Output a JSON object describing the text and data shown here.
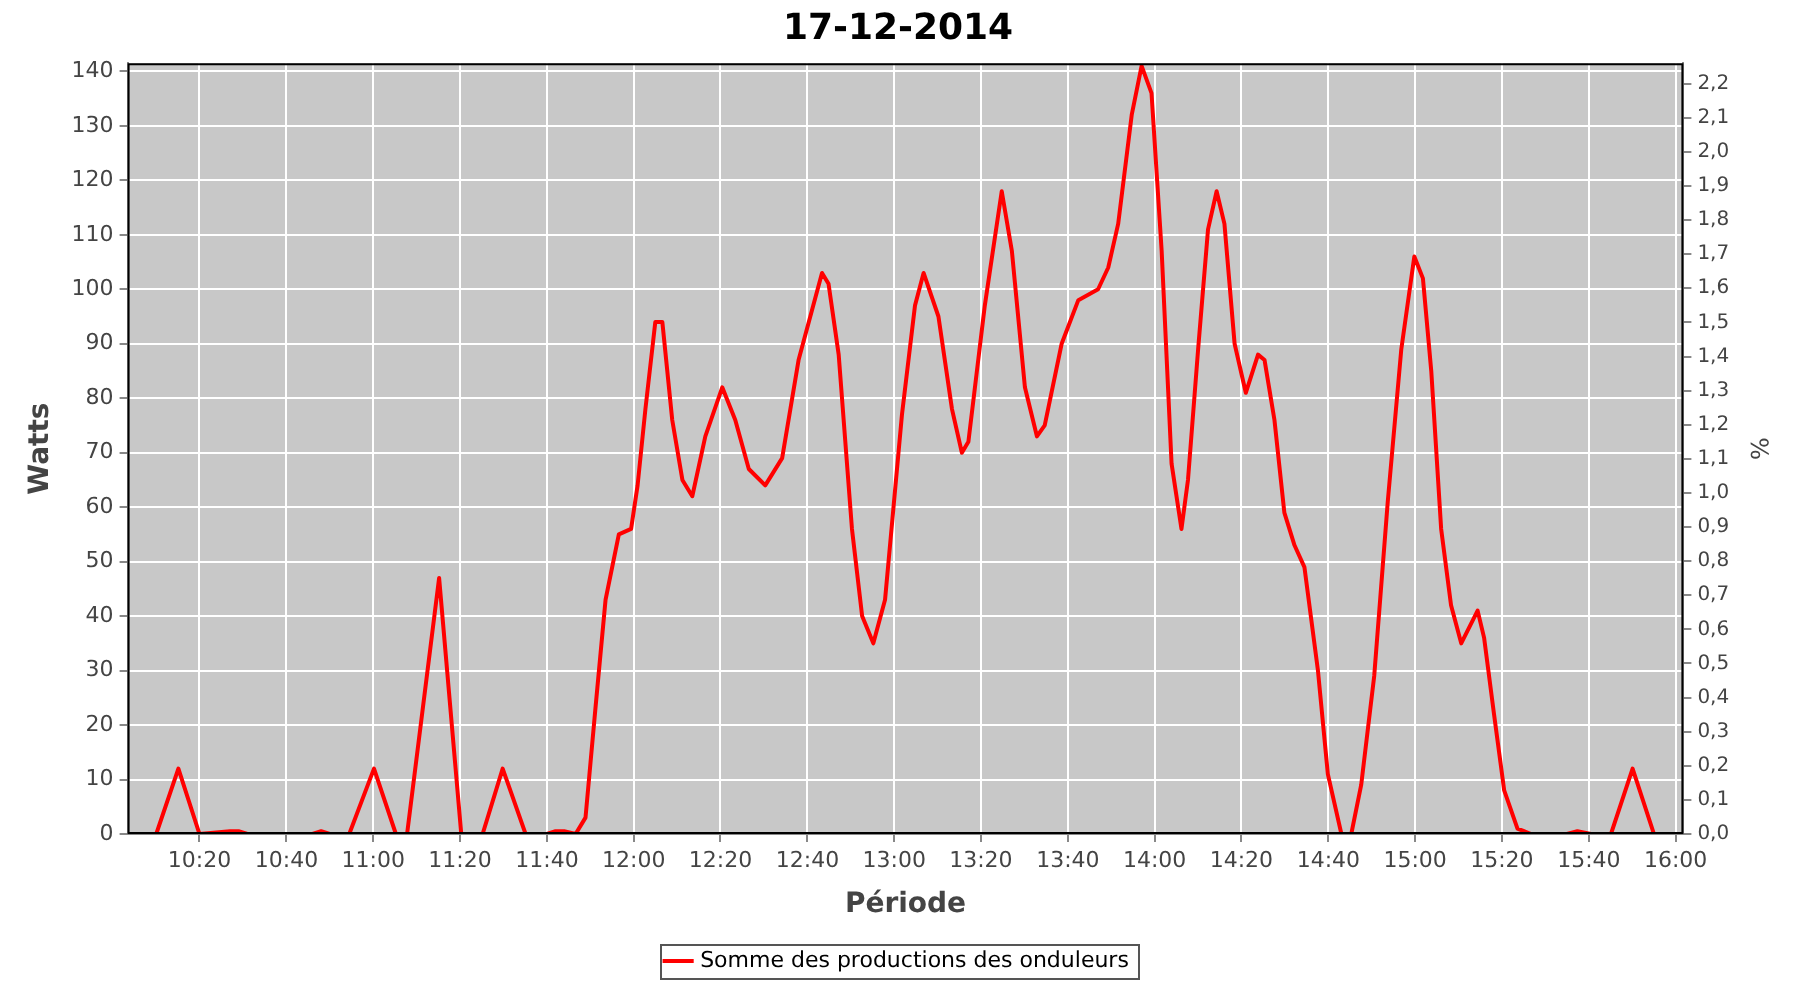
{
  "chart_data": {
    "type": "line",
    "title": "17-12-2014",
    "xlabel": "Période",
    "ylabel": "Watts",
    "y2label": "%",
    "series": [
      {
        "name": "Somme des productions des onduleurs",
        "color": "#ff0000",
        "x": [
          10.167,
          10.252,
          10.333,
          10.45,
          10.483,
          10.517,
          10.767,
          10.8,
          10.833,
          10.908,
          11.003,
          11.087,
          11.13,
          11.253,
          11.338,
          11.42,
          11.497,
          11.585,
          11.667,
          11.7,
          11.733,
          11.777,
          11.815,
          11.853,
          11.892,
          11.943,
          11.99,
          12.015,
          12.045,
          12.083,
          12.11,
          12.148,
          12.187,
          12.225,
          12.275,
          12.34,
          12.39,
          12.442,
          12.505,
          12.57,
          12.633,
          12.723,
          12.748,
          12.787,
          12.838,
          12.877,
          12.92,
          12.965,
          13.03,
          13.08,
          13.113,
          13.17,
          13.222,
          13.26,
          13.285,
          13.348,
          13.413,
          13.452,
          13.502,
          13.548,
          13.578,
          13.643,
          13.707,
          13.783,
          13.822,
          13.86,
          13.912,
          13.95,
          13.988,
          14.027,
          14.065,
          14.103,
          14.128,
          14.167,
          14.205,
          14.238,
          14.268,
          14.307,
          14.35,
          14.397,
          14.422,
          14.46,
          14.498,
          14.537,
          14.575,
          14.627,
          14.665,
          14.717,
          14.755,
          14.793,
          14.843,
          14.895,
          14.947,
          14.997,
          15.03,
          15.062,
          15.1,
          15.138,
          15.177,
          15.24,
          15.265,
          15.303,
          15.342,
          15.393,
          15.445,
          15.583,
          15.623,
          15.675,
          15.752,
          15.835,
          15.917
        ],
        "values": [
          0,
          12,
          0,
          0.5,
          0.5,
          0,
          0,
          0.5,
          0,
          0,
          12,
          0,
          0,
          47,
          0,
          0,
          12,
          0,
          0,
          0.5,
          0.5,
          0,
          3,
          23,
          43,
          55,
          56,
          64,
          78,
          94,
          94,
          76,
          65,
          62,
          73,
          82,
          76,
          67,
          64,
          69,
          87,
          103,
          101,
          88,
          56,
          40,
          35,
          43,
          77,
          97,
          103,
          95,
          78,
          70,
          72,
          97,
          118,
          107,
          82,
          73,
          75,
          90,
          98,
          100,
          104,
          112,
          132,
          141,
          136,
          107,
          68,
          56,
          65,
          89,
          111,
          118,
          112,
          90,
          81,
          88,
          87,
          76,
          59,
          53,
          49,
          30,
          11,
          0,
          0,
          9,
          29,
          61,
          89,
          106,
          102,
          85,
          56,
          42,
          35,
          41,
          36,
          22,
          8,
          1,
          0,
          0,
          0.5,
          0,
          0,
          12,
          0
        ]
      }
    ],
    "xlim": [
      10.057,
      16.03
    ],
    "xticks": [
      {
        "value": 10.333,
        "label": "10:20"
      },
      {
        "value": 10.667,
        "label": "10:40"
      },
      {
        "value": 11,
        "label": "11:00"
      },
      {
        "value": 11.333,
        "label": "11:20"
      },
      {
        "value": 11.667,
        "label": "11:40"
      },
      {
        "value": 12,
        "label": "12:00"
      },
      {
        "value": 12.333,
        "label": "12:20"
      },
      {
        "value": 12.667,
        "label": "12:40"
      },
      {
        "value": 13,
        "label": "13:00"
      },
      {
        "value": 13.333,
        "label": "13:20"
      },
      {
        "value": 13.667,
        "label": "13:40"
      },
      {
        "value": 14,
        "label": "14:00"
      },
      {
        "value": 14.333,
        "label": "14:20"
      },
      {
        "value": 14.667,
        "label": "14:40"
      },
      {
        "value": 15,
        "label": "15:00"
      },
      {
        "value": 15.333,
        "label": "15:20"
      },
      {
        "value": 15.667,
        "label": "15:40"
      },
      {
        "value": 16,
        "label": "16:00"
      }
    ],
    "ylim": [
      0,
      141.5
    ],
    "yticks": [
      0,
      10,
      20,
      30,
      40,
      50,
      60,
      70,
      80,
      90,
      100,
      110,
      120,
      130,
      140
    ],
    "y2lim": [
      0,
      2.26
    ],
    "y2ticks": [
      {
        "value": 0,
        "label": "0,0"
      },
      {
        "value": 0.1,
        "label": "0,1"
      },
      {
        "value": 0.2,
        "label": "0,2"
      },
      {
        "value": 0.3,
        "label": "0,3"
      },
      {
        "value": 0.4,
        "label": "0,4"
      },
      {
        "value": 0.5,
        "label": "0,5"
      },
      {
        "value": 0.6,
        "label": "0,6"
      },
      {
        "value": 0.7,
        "label": "0,7"
      },
      {
        "value": 0.8,
        "label": "0,8"
      },
      {
        "value": 0.9,
        "label": "0,9"
      },
      {
        "value": 1,
        "label": "1,0"
      },
      {
        "value": 1.1,
        "label": "1,1"
      },
      {
        "value": 1.2,
        "label": "1,2"
      },
      {
        "value": 1.3,
        "label": "1,3"
      },
      {
        "value": 1.4,
        "label": "1,4"
      },
      {
        "value": 1.5,
        "label": "1,5"
      },
      {
        "value": 1.6,
        "label": "1,6"
      },
      {
        "value": 1.7,
        "label": "1,7"
      },
      {
        "value": 1.8,
        "label": "1,8"
      },
      {
        "value": 1.9,
        "label": "1,9"
      },
      {
        "value": 2,
        "label": "2,0"
      },
      {
        "value": 2.1,
        "label": "2,1"
      },
      {
        "value": 2.2,
        "label": "2,2"
      }
    ],
    "grid": true,
    "legend": "bottom",
    "marker": "none",
    "line_style": "solid"
  }
}
